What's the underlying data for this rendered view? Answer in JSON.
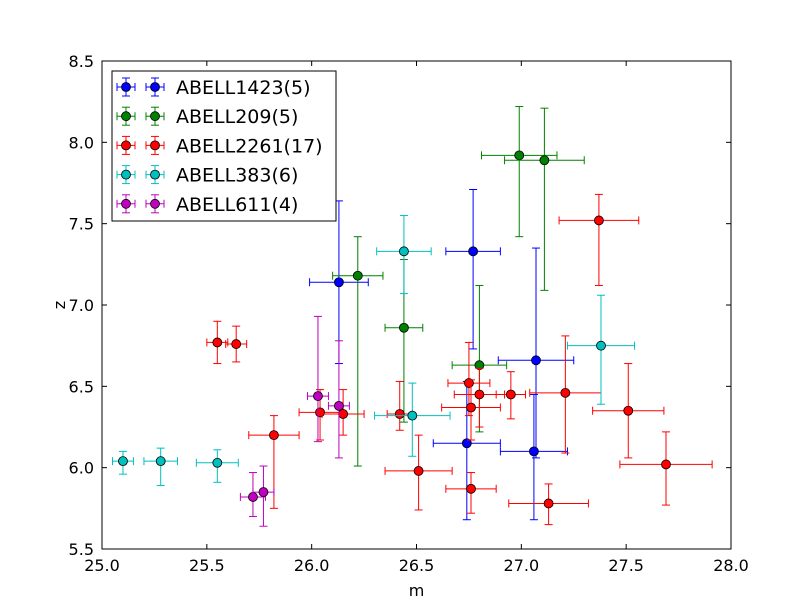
{
  "chart_data": {
    "type": "scatter",
    "title": "",
    "xlabel": "m",
    "ylabel": "z",
    "xlim": [
      25.0,
      28.0
    ],
    "ylim": [
      5.5,
      8.5
    ],
    "xticks": [
      25.0,
      25.5,
      26.0,
      26.5,
      27.0,
      27.5,
      28.0
    ],
    "yticks": [
      5.5,
      6.0,
      6.5,
      7.0,
      7.5,
      8.0,
      8.5
    ],
    "xtick_labels": [
      "25.0",
      "25.5",
      "26.0",
      "26.5",
      "27.0",
      "27.5",
      "28.0"
    ],
    "ytick_labels": [
      "5.5",
      "6.0",
      "6.5",
      "7.0",
      "7.5",
      "8.0",
      "8.5"
    ],
    "grid": false,
    "legend_position": "top-left",
    "series": [
      {
        "name": "ABELL1423(5)",
        "color": "#0000ff",
        "points": [
          {
            "x": 26.13,
            "y": 7.14,
            "xerr": 0.14,
            "yerr_low": 0.5,
            "yerr_high": 0.5
          },
          {
            "x": 26.77,
            "y": 7.33,
            "xerr": 0.13,
            "yerr_low": 0.6,
            "yerr_high": 0.38
          },
          {
            "x": 27.07,
            "y": 6.66,
            "xerr": 0.18,
            "yerr_low": 0.6,
            "yerr_high": 0.69
          },
          {
            "x": 26.74,
            "y": 6.15,
            "xerr": 0.16,
            "yerr_low": 0.47,
            "yerr_high": 0.38
          },
          {
            "x": 27.06,
            "y": 6.1,
            "xerr": 0.16,
            "yerr_low": 0.42,
            "yerr_high": 0.35
          }
        ]
      },
      {
        "name": "ABELL209(5)",
        "color": "#008000",
        "points": [
          {
            "x": 26.99,
            "y": 7.92,
            "xerr": 0.18,
            "yerr_low": 0.5,
            "yerr_high": 0.3
          },
          {
            "x": 27.11,
            "y": 7.89,
            "xerr": 0.19,
            "yerr_low": 0.8,
            "yerr_high": 0.32
          },
          {
            "x": 26.22,
            "y": 7.18,
            "xerr": 0.12,
            "yerr_low": 1.17,
            "yerr_high": 0.24
          },
          {
            "x": 26.44,
            "y": 6.86,
            "xerr": 0.09,
            "yerr_low": 0.58,
            "yerr_high": 0.42
          },
          {
            "x": 26.8,
            "y": 6.63,
            "xerr": 0.13,
            "yerr_low": 0.41,
            "yerr_high": 0.49
          }
        ]
      },
      {
        "name": "ABELL2261(17)",
        "color": "#ff0000",
        "points": [
          {
            "x": 27.37,
            "y": 7.52,
            "xerr": 0.19,
            "yerr_low": 0.4,
            "yerr_high": 0.16
          },
          {
            "x": 25.55,
            "y": 6.77,
            "xerr": 0.05,
            "yerr_low": 0.13,
            "yerr_high": 0.13
          },
          {
            "x": 25.64,
            "y": 6.76,
            "xerr": 0.05,
            "yerr_low": 0.11,
            "yerr_high": 0.11
          },
          {
            "x": 26.75,
            "y": 6.52,
            "xerr": 0.1,
            "yerr_low": 0.2,
            "yerr_high": 0.25
          },
          {
            "x": 26.8,
            "y": 6.45,
            "xerr": 0.12,
            "yerr_low": 0.2,
            "yerr_high": 0.16
          },
          {
            "x": 26.95,
            "y": 6.45,
            "xerr": 0.07,
            "yerr_low": 0.15,
            "yerr_high": 0.14
          },
          {
            "x": 27.21,
            "y": 6.46,
            "xerr": 0.17,
            "yerr_low": 0.37,
            "yerr_high": 0.35
          },
          {
            "x": 26.76,
            "y": 6.37,
            "xerr": 0.14,
            "yerr_low": 0.2,
            "yerr_high": 0.17
          },
          {
            "x": 26.04,
            "y": 6.34,
            "xerr": 0.1,
            "yerr_low": 0.17,
            "yerr_high": 0.14
          },
          {
            "x": 26.15,
            "y": 6.33,
            "xerr": 0.1,
            "yerr_low": 0.13,
            "yerr_high": 0.15
          },
          {
            "x": 26.42,
            "y": 6.33,
            "xerr": 0.06,
            "yerr_low": 0.1,
            "yerr_high": 0.2
          },
          {
            "x": 27.51,
            "y": 6.35,
            "xerr": 0.17,
            "yerr_low": 0.29,
            "yerr_high": 0.29
          },
          {
            "x": 25.82,
            "y": 6.2,
            "xerr": 0.12,
            "yerr_low": 0.45,
            "yerr_high": 0.12
          },
          {
            "x": 26.51,
            "y": 5.98,
            "xerr": 0.16,
            "yerr_low": 0.24,
            "yerr_high": 0.22
          },
          {
            "x": 27.69,
            "y": 6.02,
            "xerr": 0.22,
            "yerr_low": 0.25,
            "yerr_high": 0.2
          },
          {
            "x": 26.76,
            "y": 5.87,
            "xerr": 0.12,
            "yerr_low": 0.15,
            "yerr_high": 0.1
          },
          {
            "x": 27.13,
            "y": 5.78,
            "xerr": 0.19,
            "yerr_low": 0.13,
            "yerr_high": 0.12
          }
        ]
      },
      {
        "name": "ABELL383(6)",
        "color": "#00bfbf",
        "points": [
          {
            "x": 26.44,
            "y": 7.33,
            "xerr": 0.13,
            "yerr_low": 0.26,
            "yerr_high": 0.22
          },
          {
            "x": 27.38,
            "y": 6.75,
            "xerr": 0.16,
            "yerr_low": 0.36,
            "yerr_high": 0.31
          },
          {
            "x": 26.48,
            "y": 6.32,
            "xerr": 0.18,
            "yerr_low": 0.25,
            "yerr_high": 0.2
          },
          {
            "x": 25.1,
            "y": 6.04,
            "xerr": 0.05,
            "yerr_low": 0.08,
            "yerr_high": 0.06
          },
          {
            "x": 25.28,
            "y": 6.04,
            "xerr": 0.08,
            "yerr_low": 0.15,
            "yerr_high": 0.08
          },
          {
            "x": 25.55,
            "y": 6.03,
            "xerr": 0.1,
            "yerr_low": 0.12,
            "yerr_high": 0.08
          }
        ]
      },
      {
        "name": "ABELL611(4)",
        "color": "#bf00bf",
        "points": [
          {
            "x": 26.03,
            "y": 6.44,
            "xerr": 0.05,
            "yerr_low": 0.28,
            "yerr_high": 0.49
          },
          {
            "x": 26.13,
            "y": 6.38,
            "xerr": 0.05,
            "yerr_low": 0.32,
            "yerr_high": 0.4
          },
          {
            "x": 25.72,
            "y": 5.82,
            "xerr": 0.06,
            "yerr_low": 0.12,
            "yerr_high": 0.15
          },
          {
            "x": 25.77,
            "y": 5.85,
            "xerr": 0.05,
            "yerr_low": 0.21,
            "yerr_high": 0.16
          }
        ]
      }
    ]
  }
}
